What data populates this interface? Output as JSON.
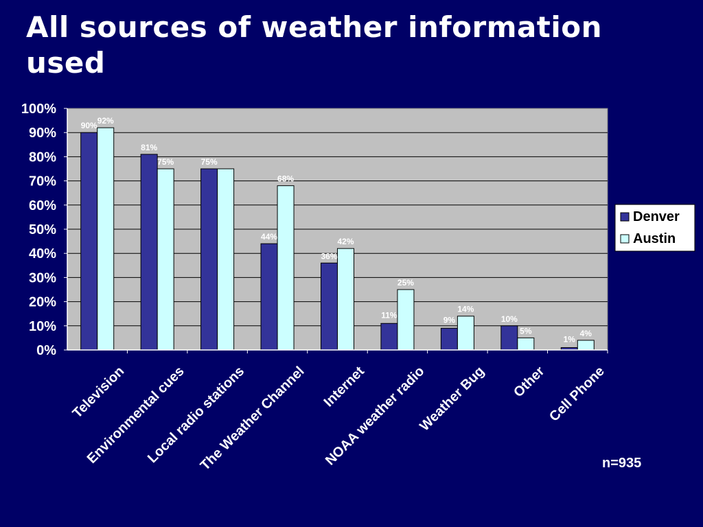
{
  "slide": {
    "title": "All sources of weather information used",
    "note": "n=935"
  },
  "colors": {
    "background": "#000066",
    "plot_area": "#c0c0c0",
    "Denver": "#333399",
    "Austin": "#ccffff"
  },
  "chart_data": {
    "type": "bar",
    "categories": [
      "Television",
      "Environmental cues",
      "Local radio stations",
      "The Weather Channel",
      "Internet",
      "NOAA weather radio",
      "Weather Bug",
      "Other",
      "Cell Phone"
    ],
    "series": [
      {
        "name": "Denver",
        "values": [
          90,
          81,
          75,
          44,
          36,
          11,
          9,
          10,
          1
        ]
      },
      {
        "name": "Austin",
        "values": [
          92,
          75,
          75,
          68,
          42,
          25,
          14,
          5,
          4
        ]
      }
    ],
    "data_labels": {
      "Denver": [
        "90%",
        "81%",
        "75%",
        "44%",
        "36%",
        "11%",
        "9%",
        "10%",
        "1%"
      ],
      "Austin": [
        "92%",
        "75%",
        "",
        "68%",
        "42%",
        "25%",
        "14%",
        "5%",
        "4%"
      ]
    },
    "ylim": [
      0,
      100
    ],
    "y_ticks": [
      0,
      10,
      20,
      30,
      40,
      50,
      60,
      70,
      80,
      90,
      100
    ],
    "y_tick_labels": [
      "0%",
      "10%",
      "20%",
      "30%",
      "40%",
      "50%",
      "60%",
      "70%",
      "80%",
      "90%",
      "100%"
    ],
    "grid": true,
    "legend": "right"
  }
}
